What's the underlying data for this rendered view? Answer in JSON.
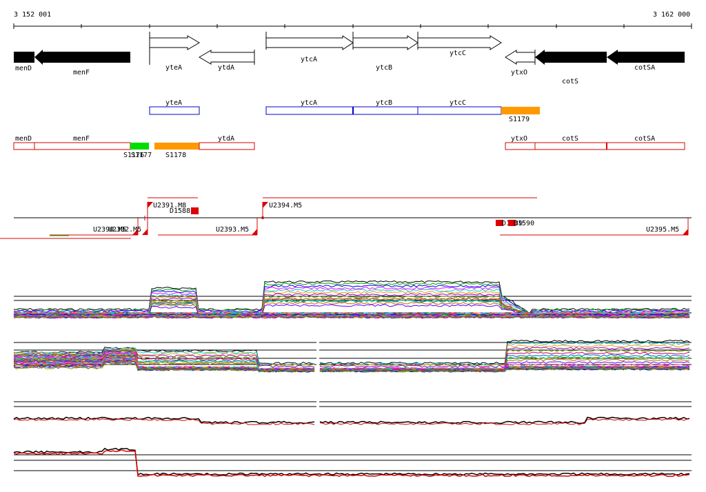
{
  "ruler": {
    "start_label": "3 152 001",
    "end_label": "3 162 000"
  },
  "genes": [
    {
      "name": "menD",
      "strand": "-",
      "style": "filled",
      "label_pos": "left-below"
    },
    {
      "name": "menF",
      "strand": "-",
      "style": "filled"
    },
    {
      "name": "yteA",
      "strand": "+",
      "style": "open"
    },
    {
      "name": "ytdA",
      "strand": "-",
      "style": "open"
    },
    {
      "name": "ytcA",
      "strand": "+",
      "style": "open"
    },
    {
      "name": "ytcB",
      "strand": "+",
      "style": "open"
    },
    {
      "name": "ytcC",
      "strand": "+",
      "style": "open"
    },
    {
      "name": "ytxO",
      "strand": "-",
      "style": "open"
    },
    {
      "name": "cotS",
      "strand": "-",
      "style": "filled"
    },
    {
      "name": "cotSA",
      "strand": "-",
      "style": "filled"
    }
  ],
  "plus_operons": {
    "genes": [
      "yteA",
      "ytcA",
      "ytcB",
      "ytcC"
    ],
    "highlight": "S1179",
    "highlight_color": "#ff9900",
    "color": "#0000cc"
  },
  "minus_operons": {
    "genes": [
      "menD",
      "menF",
      "ytdA",
      "ytxO",
      "cotS",
      "cotSA"
    ],
    "highlights": [
      {
        "label": "S1176",
        "color": "#00dd00"
      },
      {
        "label": "S1177",
        "color": "#00dd00"
      },
      {
        "label": "S1178",
        "color": "#ff9900"
      }
    ],
    "color": "#dd0000"
  },
  "transcription_units": [
    {
      "label": "U2391.M8",
      "strand": "+"
    },
    {
      "label": "U2394.M5",
      "strand": "+"
    },
    {
      "label": "U2390.M5",
      "strand": "-"
    },
    {
      "label": "U2392.M5",
      "strand": "-"
    },
    {
      "label": "U2393.M5",
      "strand": "-"
    },
    {
      "label": "U2395.M5",
      "strand": "-"
    }
  ],
  "terminators": [
    {
      "label": "D1588"
    },
    {
      "label": "D1589"
    },
    {
      "label": "D1590"
    }
  ],
  "tracks": {
    "expression_plus": "tiling array profiles, plus strand",
    "expression_minus": "tiling array profiles, minus strand",
    "summary_plus": "summary profile, plus strand",
    "summary_minus": "summary profile, minus strand"
  },
  "colors": {
    "filled_gene": "#000000",
    "plus_operon": "#0000cc",
    "minus_operon": "#dd0000",
    "unit_line": "#dd0000",
    "green_mark": "#00dd00",
    "orange_mark": "#ff9900"
  }
}
